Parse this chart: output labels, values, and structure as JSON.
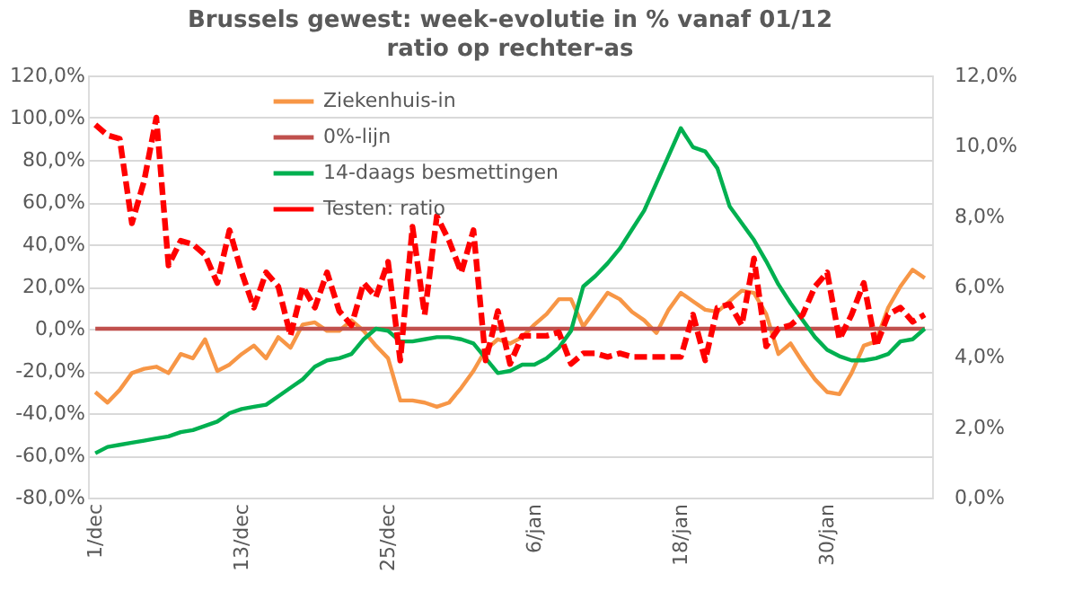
{
  "chart_data": {
    "type": "line",
    "title": "Brussels gewest: week-evolutie in %  vanaf 01/12",
    "subtitle": "ratio op rechter-as",
    "categories": [
      "1/dec",
      null,
      null,
      null,
      null,
      null,
      null,
      null,
      null,
      null,
      null,
      null,
      "13/dec",
      null,
      null,
      null,
      null,
      null,
      null,
      null,
      null,
      null,
      null,
      null,
      "25/dec",
      null,
      null,
      null,
      null,
      null,
      null,
      null,
      null,
      null,
      null,
      null,
      "6/jan",
      null,
      null,
      null,
      null,
      null,
      null,
      null,
      null,
      null,
      null,
      null,
      "18/jan",
      null,
      null,
      null,
      null,
      null,
      null,
      null,
      null,
      null,
      null,
      null,
      "30/jan",
      null,
      null,
      null,
      null,
      null,
      null,
      null,
      null
    ],
    "series": [
      {
        "name": "Ziekenhuis-in",
        "color": "#f79646",
        "line_style": "solid",
        "values": [
          -30,
          -35,
          -29,
          -21,
          -19,
          -18,
          -21,
          -12,
          -14,
          -5,
          -20,
          -17,
          -12,
          -8,
          -14,
          -4,
          -9,
          2,
          3,
          -1,
          -1,
          4,
          -1,
          -8,
          -14,
          -34,
          -34,
          -35,
          -37,
          -35,
          -28,
          -20,
          -10,
          -5,
          -7,
          -4,
          2,
          7,
          14,
          14,
          1,
          9,
          17,
          14,
          8,
          4,
          -2,
          9,
          17,
          13,
          9,
          8,
          13,
          18,
          17,
          7,
          -12,
          -7,
          -16,
          -24,
          -30,
          -31,
          -21,
          -8,
          -6,
          10,
          20,
          28,
          24
        ]
      },
      {
        "name": "0%-lijn",
        "color": "#c0504d",
        "line_style": "solid",
        "values": [
          0,
          0,
          0,
          0,
          0,
          0,
          0,
          0,
          0,
          0,
          0,
          0,
          0,
          0,
          0,
          0,
          0,
          0,
          0,
          0,
          0,
          0,
          0,
          0,
          0,
          0,
          0,
          0,
          0,
          0,
          0,
          0,
          0,
          0,
          0,
          0,
          0,
          0,
          0,
          0,
          0,
          0,
          0,
          0,
          0,
          0,
          0,
          0,
          0,
          0,
          0,
          0,
          0,
          0,
          0,
          0,
          0,
          0,
          0,
          0,
          0,
          0,
          0,
          0,
          0,
          0,
          0,
          0,
          0
        ]
      },
      {
        "name": "14-daags besmettingen",
        "color": "#00b050",
        "line_style": "solid",
        "values": [
          -59,
          -56,
          -55,
          -54,
          -53,
          -52,
          -51,
          -49,
          -48,
          -46,
          -44,
          -40,
          -38,
          -37,
          -36,
          -32,
          -28,
          -24,
          -18,
          -15,
          -14,
          -12,
          -5,
          0,
          -1,
          -6,
          -6,
          -5,
          -4,
          -4,
          -5,
          -7,
          -14,
          -21,
          -20,
          -17,
          -17,
          -14,
          -9,
          -1,
          20,
          25,
          31,
          38,
          47,
          56,
          69,
          82,
          95,
          86,
          84,
          76,
          58,
          50,
          42,
          32,
          21,
          12,
          4,
          -4,
          -10,
          -13,
          -15,
          -15,
          -14,
          -12,
          -6,
          -5,
          0
        ]
      },
      {
        "name": "Testen: ratio",
        "color": "#ff0000",
        "line_style": "dashed",
        "axis": "y2",
        "values": [
          10.6,
          10.3,
          10.2,
          7.8,
          9.0,
          10.8,
          6.6,
          7.3,
          7.2,
          6.9,
          6.1,
          7.6,
          6.4,
          5.4,
          6.4,
          6.0,
          4.6,
          6.0,
          5.4,
          6.4,
          5.3,
          4.9,
          6.1,
          5.7,
          6.7,
          3.9,
          7.7,
          5.2,
          8.0,
          7.3,
          6.4,
          7.6,
          3.9,
          5.3,
          3.8,
          4.6,
          4.6,
          4.6,
          4.7,
          3.8,
          4.1,
          4.1,
          4.0,
          4.1,
          4.0,
          4.0,
          4.0,
          4.0,
          4.0,
          5.2,
          3.9,
          5.4,
          5.5,
          4.9,
          6.8,
          4.3,
          4.8,
          4.9,
          5.2,
          6.0,
          6.4,
          4.5,
          5.2,
          6.1,
          4.3,
          5.2,
          5.4,
          5.0,
          5.2
        ]
      }
    ],
    "ylim": [
      -80,
      120
    ],
    "yticks": [
      {
        "value": -80,
        "label": "-80,0%"
      },
      {
        "value": -60,
        "label": "-60,0%"
      },
      {
        "value": -40,
        "label": "-40,0%"
      },
      {
        "value": -20,
        "label": "-20,0%"
      },
      {
        "value": 0,
        "label": "0,0%"
      },
      {
        "value": 20,
        "label": "20,0%"
      },
      {
        "value": 40,
        "label": "40,0%"
      },
      {
        "value": 60,
        "label": "60,0%"
      },
      {
        "value": 80,
        "label": "80,0%"
      },
      {
        "value": 100,
        "label": "100,0%"
      },
      {
        "value": 120,
        "label": "120,0%"
      }
    ],
    "y2lim": [
      0,
      12
    ],
    "y2ticks": [
      {
        "value": 0,
        "label": "0,0%"
      },
      {
        "value": 2,
        "label": "2,0%"
      },
      {
        "value": 4,
        "label": "4,0%"
      },
      {
        "value": 6,
        "label": "6,0%"
      },
      {
        "value": 8,
        "label": "8,0%"
      },
      {
        "value": 10,
        "label": "10,0%"
      },
      {
        "value": 12,
        "label": "12,0%"
      }
    ],
    "grid": "y",
    "legend": "top left",
    "marker": "none"
  }
}
